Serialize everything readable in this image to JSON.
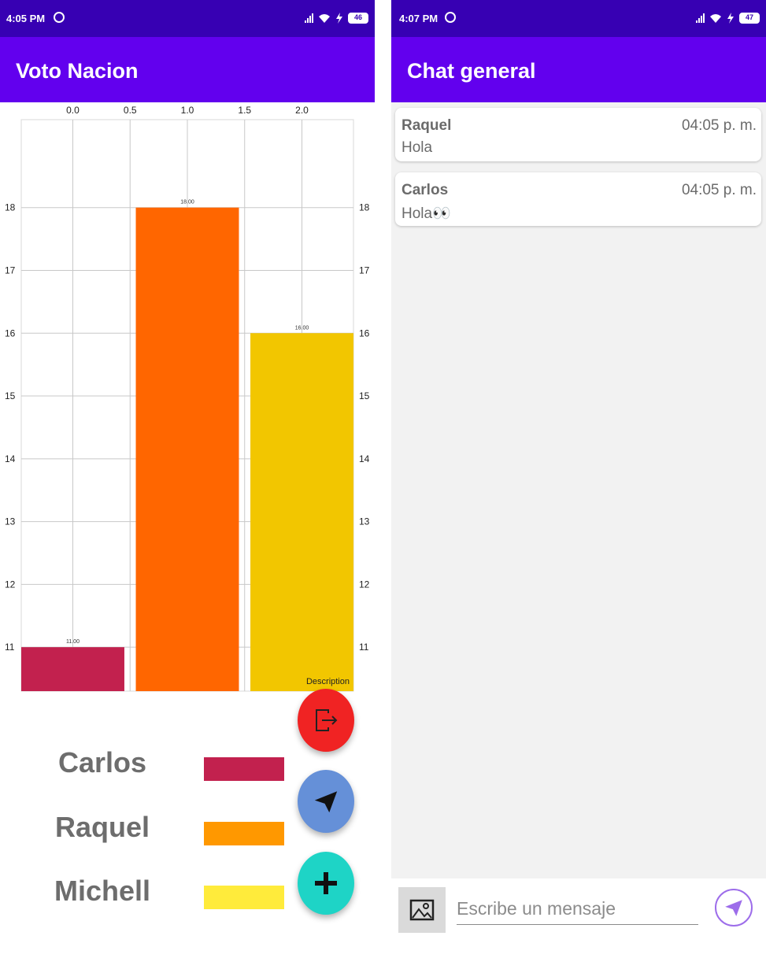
{
  "left_screen": {
    "status_bar": {
      "time": "4:05 PM",
      "battery": "46"
    },
    "app_bar": {
      "title": "Voto Nacion"
    },
    "chart_description": "Description",
    "legend": [
      {
        "name": "Carlos",
        "color": "#c2214e"
      },
      {
        "name": "Raquel",
        "color": "#ff9800"
      },
      {
        "name": "Michell",
        "color": "#ffeb3b"
      }
    ],
    "fabs": {
      "logout": "logout-icon",
      "send": "send-icon",
      "add": "plus-icon"
    }
  },
  "right_screen": {
    "status_bar": {
      "time": "4:07 PM",
      "battery": "47"
    },
    "app_bar": {
      "title": "Chat general"
    },
    "messages": [
      {
        "sender": "Raquel",
        "time": "04:05 p. m.",
        "text": "Hola"
      },
      {
        "sender": "Carlos",
        "time": "04:05 p. m.",
        "text": "Hola👀"
      }
    ],
    "input": {
      "placeholder": "Escribe un mensaje",
      "value": ""
    },
    "icons": {
      "gallery": "image-icon",
      "send": "send-icon"
    }
  },
  "colors": {
    "status_bar": "#3700b3",
    "app_bar": "#6200ee"
  },
  "chart_data": {
    "type": "bar",
    "x": [
      0,
      1,
      2
    ],
    "values": [
      11,
      18,
      16
    ],
    "value_labels": [
      "11.00",
      "18.00",
      "16.00"
    ],
    "colors": [
      "#c2214e",
      "#ff6600",
      "#f2c600"
    ],
    "x_ticks": [
      "0.0",
      "0.5",
      "1.0",
      "1.5",
      "2.0"
    ],
    "y_ticks": [
      "11",
      "12",
      "13",
      "14",
      "15",
      "16",
      "17",
      "18"
    ],
    "ylim": [
      10.3,
      19.4
    ],
    "xlim": [
      -0.45,
      2.45
    ],
    "description": "Description",
    "grid": true,
    "legend_placement": "below"
  }
}
